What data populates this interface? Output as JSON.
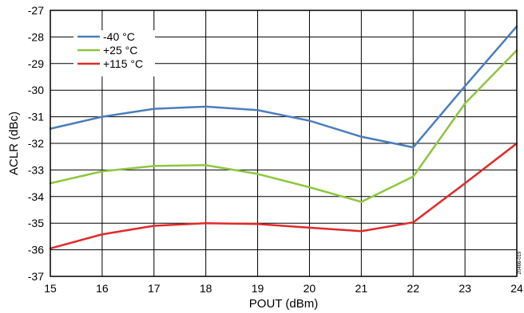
{
  "chart_data": {
    "type": "line",
    "title": "",
    "xlabel": "POUT (dBm)",
    "ylabel": "ACLR (dBc)",
    "x": [
      15,
      16,
      17,
      18,
      19,
      20,
      21,
      22,
      23,
      24
    ],
    "xlim": [
      15,
      24
    ],
    "ylim": [
      -37,
      -27
    ],
    "xticks": [
      "15",
      "16",
      "17",
      "18",
      "19",
      "20",
      "21",
      "22",
      "23",
      "24"
    ],
    "yticks": [
      "-27",
      "-28",
      "-29",
      "-30",
      "-31",
      "-32",
      "-33",
      "-34",
      "-35",
      "-36",
      "-37"
    ],
    "grid": true,
    "legend": "top-left",
    "series": [
      {
        "name": "-40 °C",
        "color": "#4a7ebb",
        "values": [
          -31.45,
          -31.0,
          -30.7,
          -30.62,
          -30.75,
          -31.15,
          -31.75,
          -32.15,
          -29.85,
          -27.6
        ]
      },
      {
        "name": "+25 °C",
        "color": "#8dc63f",
        "values": [
          -33.5,
          -33.05,
          -32.85,
          -32.82,
          -33.15,
          -33.65,
          -34.2,
          -33.25,
          -30.5,
          -28.5
        ]
      },
      {
        "name": "+115 °C",
        "color": "#e02a2a",
        "values": [
          -35.95,
          -35.42,
          -35.1,
          -35.0,
          -35.03,
          -35.17,
          -35.3,
          -34.97,
          -33.5,
          -32.0
        ]
      }
    ],
    "figure_id": "20466-019"
  }
}
